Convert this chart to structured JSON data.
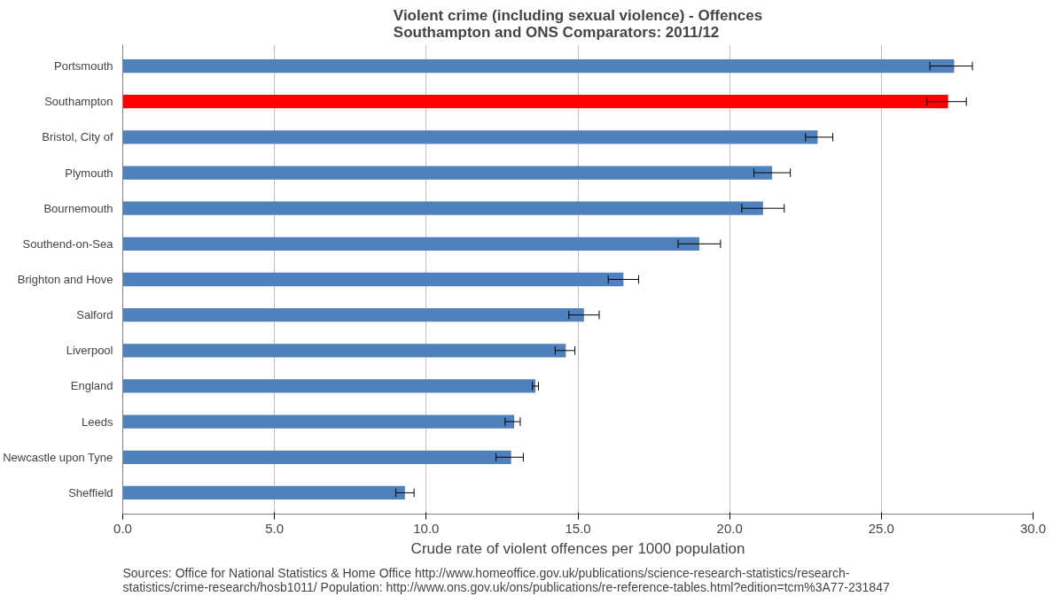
{
  "chart_data": {
    "type": "bar",
    "orientation": "horizontal",
    "title": "Violent crime (including sexual violence) - Offences\nSouthampton and ONS Comparators: 2011/12",
    "xlabel": "Crude rate of violent offences per 1000 population",
    "categories": [
      "Portsmouth",
      "Southampton",
      "Bristol, City of",
      "Plymouth",
      "Bournemouth",
      "Southend-on-Sea",
      "Brighton and Hove",
      "Salford",
      "Liverpool",
      "England",
      "Leeds",
      "Newcastle upon Tyne",
      "Sheffield"
    ],
    "values": [
      27.4,
      27.2,
      22.9,
      21.4,
      21.1,
      19.0,
      16.5,
      15.2,
      14.6,
      13.6,
      12.9,
      12.8,
      9.3
    ],
    "errors": [
      [
        26.6,
        28.0
      ],
      [
        26.5,
        27.8
      ],
      [
        22.5,
        23.4
      ],
      [
        20.8,
        22.0
      ],
      [
        20.4,
        21.8
      ],
      [
        18.3,
        19.7
      ],
      [
        16.0,
        17.0
      ],
      [
        14.7,
        15.7
      ],
      [
        14.25,
        14.9
      ],
      [
        13.5,
        13.7
      ],
      [
        12.6,
        13.1
      ],
      [
        12.3,
        13.2
      ],
      [
        9.0,
        9.6
      ]
    ],
    "colors": [
      "#4f81bd",
      "#ff0000",
      "#4f81bd",
      "#4f81bd",
      "#4f81bd",
      "#4f81bd",
      "#4f81bd",
      "#4f81bd",
      "#4f81bd",
      "#4f81bd",
      "#4f81bd",
      "#4f81bd",
      "#4f81bd"
    ],
    "xlim": [
      0,
      30
    ],
    "xticks": [
      {
        "value": 0,
        "label": "0.0"
      },
      {
        "value": 5,
        "label": "5.0"
      },
      {
        "value": 10,
        "label": "10.0"
      },
      {
        "value": 15,
        "label": "15.0"
      },
      {
        "value": 20,
        "label": "20.0"
      },
      {
        "value": 25,
        "label": "25.0"
      },
      {
        "value": 30,
        "label": "30.0"
      }
    ],
    "grid": "x",
    "annotations": [
      "Sources: Office for National Statistics & Home Office  http://www.homeoffice.gov.uk/publications/science-research-statistics/research-\nstatistics/crime-research/hosb1011/ Population:  http://www.ons.gov.uk/ons/publications/re-reference-tables.html?edition=tcm%3A77-231847"
    ]
  }
}
